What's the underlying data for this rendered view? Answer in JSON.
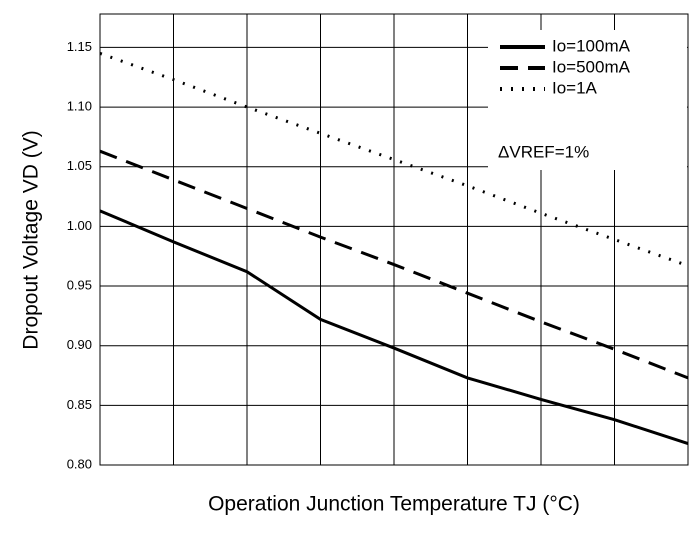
{
  "chart_data": {
    "type": "line",
    "xlabel": "Operation Junction Temperature TJ (°C)",
    "ylabel": "Dropout Voltage VD (V)",
    "categories": [
      null,
      null,
      null,
      null,
      null,
      null,
      null,
      null,
      null
    ],
    "series": [
      {
        "name": "Io=100mA",
        "color": "#000000",
        "style": "solid",
        "values": [
          1.013,
          0.987,
          0.962,
          0.922,
          0.898,
          0.873,
          0.855,
          0.838,
          0.818
        ]
      },
      {
        "name": "Io=500mA",
        "color": "#000000",
        "style": "dashed",
        "values": [
          1.063,
          1.039,
          1.015,
          0.991,
          0.968,
          0.944,
          0.92,
          0.897,
          0.873
        ]
      },
      {
        "name": "Io=1A",
        "color": "#000000",
        "style": "dotted",
        "values": [
          1.145,
          1.123,
          1.1,
          1.078,
          1.056,
          1.034,
          1.011,
          0.989,
          0.967
        ]
      }
    ],
    "annotation": "ΔVREF=1%",
    "ylim": [
      0.8,
      1.178
    ],
    "yticks": [
      {
        "value": 0.8,
        "label": "0.80"
      },
      0.85,
      {
        "value": 0.9,
        "label": "0.90"
      },
      0.95,
      {
        "value": 1.0,
        "label": "1.00"
      },
      1.05,
      {
        "value": 1.1,
        "label": "1.10"
      },
      1.15
    ],
    "grid": true,
    "legend": "upper right"
  }
}
